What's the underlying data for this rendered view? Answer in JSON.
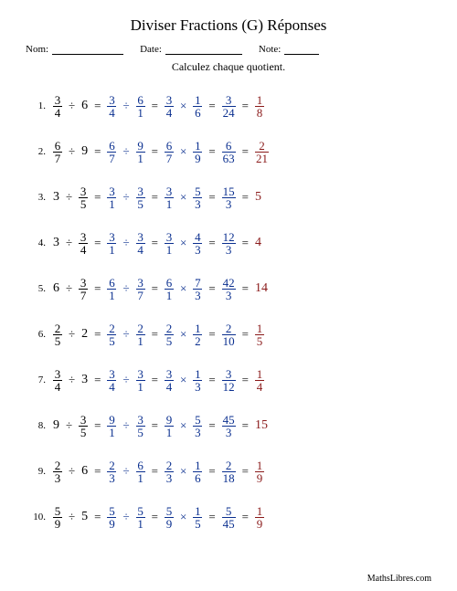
{
  "title": "Diviser Fractions (G) Réponses",
  "header": {
    "name_label": "Nom:",
    "date_label": "Date:",
    "note_label": "Note:"
  },
  "instruction": "Calculez chaque quotient.",
  "footer": "MathsLibres.com",
  "colors": {
    "problem": "#000000",
    "work": "#0a2f8f",
    "answer": "#8a1a1a"
  },
  "line_widths": {
    "name": 78,
    "date": 84,
    "note": 38
  },
  "problems": [
    {
      "n": "1.",
      "steps": [
        {
          "c": "black",
          "t": [
            {
              "f": [
                "3",
                "4"
              ]
            },
            {
              "op": "÷"
            },
            {
              "w": "6"
            }
          ]
        },
        {
          "c": "blue",
          "eq": true,
          "t": [
            {
              "f": [
                "3",
                "4"
              ]
            },
            {
              "op": "÷"
            },
            {
              "f": [
                "6",
                "1"
              ]
            }
          ]
        },
        {
          "c": "blue",
          "eq": true,
          "t": [
            {
              "f": [
                "3",
                "4"
              ]
            },
            {
              "op": "×"
            },
            {
              "f": [
                "1",
                "6"
              ]
            }
          ]
        },
        {
          "c": "blue",
          "eq": true,
          "t": [
            {
              "f": [
                "3",
                "24"
              ]
            }
          ]
        },
        {
          "c": "red",
          "eq": true,
          "t": [
            {
              "f": [
                "1",
                "8"
              ]
            }
          ]
        }
      ]
    },
    {
      "n": "2.",
      "steps": [
        {
          "c": "black",
          "t": [
            {
              "f": [
                "6",
                "7"
              ]
            },
            {
              "op": "÷"
            },
            {
              "w": "9"
            }
          ]
        },
        {
          "c": "blue",
          "eq": true,
          "t": [
            {
              "f": [
                "6",
                "7"
              ]
            },
            {
              "op": "÷"
            },
            {
              "f": [
                "9",
                "1"
              ]
            }
          ]
        },
        {
          "c": "blue",
          "eq": true,
          "t": [
            {
              "f": [
                "6",
                "7"
              ]
            },
            {
              "op": "×"
            },
            {
              "f": [
                "1",
                "9"
              ]
            }
          ]
        },
        {
          "c": "blue",
          "eq": true,
          "t": [
            {
              "f": [
                "6",
                "63"
              ]
            }
          ]
        },
        {
          "c": "red",
          "eq": true,
          "t": [
            {
              "f": [
                "2",
                "21"
              ]
            }
          ]
        }
      ]
    },
    {
      "n": "3.",
      "steps": [
        {
          "c": "black",
          "t": [
            {
              "w": "3"
            },
            {
              "op": "÷"
            },
            {
              "f": [
                "3",
                "5"
              ]
            }
          ]
        },
        {
          "c": "blue",
          "eq": true,
          "t": [
            {
              "f": [
                "3",
                "1"
              ]
            },
            {
              "op": "÷"
            },
            {
              "f": [
                "3",
                "5"
              ]
            }
          ]
        },
        {
          "c": "blue",
          "eq": true,
          "t": [
            {
              "f": [
                "3",
                "1"
              ]
            },
            {
              "op": "×"
            },
            {
              "f": [
                "5",
                "3"
              ]
            }
          ]
        },
        {
          "c": "blue",
          "eq": true,
          "t": [
            {
              "f": [
                "15",
                "3"
              ]
            }
          ]
        },
        {
          "c": "red",
          "eq": true,
          "t": [
            {
              "w": "5"
            }
          ]
        }
      ]
    },
    {
      "n": "4.",
      "steps": [
        {
          "c": "black",
          "t": [
            {
              "w": "3"
            },
            {
              "op": "÷"
            },
            {
              "f": [
                "3",
                "4"
              ]
            }
          ]
        },
        {
          "c": "blue",
          "eq": true,
          "t": [
            {
              "f": [
                "3",
                "1"
              ]
            },
            {
              "op": "÷"
            },
            {
              "f": [
                "3",
                "4"
              ]
            }
          ]
        },
        {
          "c": "blue",
          "eq": true,
          "t": [
            {
              "f": [
                "3",
                "1"
              ]
            },
            {
              "op": "×"
            },
            {
              "f": [
                "4",
                "3"
              ]
            }
          ]
        },
        {
          "c": "blue",
          "eq": true,
          "t": [
            {
              "f": [
                "12",
                "3"
              ]
            }
          ]
        },
        {
          "c": "red",
          "eq": true,
          "t": [
            {
              "w": "4"
            }
          ]
        }
      ]
    },
    {
      "n": "5.",
      "steps": [
        {
          "c": "black",
          "t": [
            {
              "w": "6"
            },
            {
              "op": "÷"
            },
            {
              "f": [
                "3",
                "7"
              ]
            }
          ]
        },
        {
          "c": "blue",
          "eq": true,
          "t": [
            {
              "f": [
                "6",
                "1"
              ]
            },
            {
              "op": "÷"
            },
            {
              "f": [
                "3",
                "7"
              ]
            }
          ]
        },
        {
          "c": "blue",
          "eq": true,
          "t": [
            {
              "f": [
                "6",
                "1"
              ]
            },
            {
              "op": "×"
            },
            {
              "f": [
                "7",
                "3"
              ]
            }
          ]
        },
        {
          "c": "blue",
          "eq": true,
          "t": [
            {
              "f": [
                "42",
                "3"
              ]
            }
          ]
        },
        {
          "c": "red",
          "eq": true,
          "t": [
            {
              "w": "14"
            }
          ]
        }
      ]
    },
    {
      "n": "6.",
      "steps": [
        {
          "c": "black",
          "t": [
            {
              "f": [
                "2",
                "5"
              ]
            },
            {
              "op": "÷"
            },
            {
              "w": "2"
            }
          ]
        },
        {
          "c": "blue",
          "eq": true,
          "t": [
            {
              "f": [
                "2",
                "5"
              ]
            },
            {
              "op": "÷"
            },
            {
              "f": [
                "2",
                "1"
              ]
            }
          ]
        },
        {
          "c": "blue",
          "eq": true,
          "t": [
            {
              "f": [
                "2",
                "5"
              ]
            },
            {
              "op": "×"
            },
            {
              "f": [
                "1",
                "2"
              ]
            }
          ]
        },
        {
          "c": "blue",
          "eq": true,
          "t": [
            {
              "f": [
                "2",
                "10"
              ]
            }
          ]
        },
        {
          "c": "red",
          "eq": true,
          "t": [
            {
              "f": [
                "1",
                "5"
              ]
            }
          ]
        }
      ]
    },
    {
      "n": "7.",
      "steps": [
        {
          "c": "black",
          "t": [
            {
              "f": [
                "3",
                "4"
              ]
            },
            {
              "op": "÷"
            },
            {
              "w": "3"
            }
          ]
        },
        {
          "c": "blue",
          "eq": true,
          "t": [
            {
              "f": [
                "3",
                "4"
              ]
            },
            {
              "op": "÷"
            },
            {
              "f": [
                "3",
                "1"
              ]
            }
          ]
        },
        {
          "c": "blue",
          "eq": true,
          "t": [
            {
              "f": [
                "3",
                "4"
              ]
            },
            {
              "op": "×"
            },
            {
              "f": [
                "1",
                "3"
              ]
            }
          ]
        },
        {
          "c": "blue",
          "eq": true,
          "t": [
            {
              "f": [
                "3",
                "12"
              ]
            }
          ]
        },
        {
          "c": "red",
          "eq": true,
          "t": [
            {
              "f": [
                "1",
                "4"
              ]
            }
          ]
        }
      ]
    },
    {
      "n": "8.",
      "steps": [
        {
          "c": "black",
          "t": [
            {
              "w": "9"
            },
            {
              "op": "÷"
            },
            {
              "f": [
                "3",
                "5"
              ]
            }
          ]
        },
        {
          "c": "blue",
          "eq": true,
          "t": [
            {
              "f": [
                "9",
                "1"
              ]
            },
            {
              "op": "÷"
            },
            {
              "f": [
                "3",
                "5"
              ]
            }
          ]
        },
        {
          "c": "blue",
          "eq": true,
          "t": [
            {
              "f": [
                "9",
                "1"
              ]
            },
            {
              "op": "×"
            },
            {
              "f": [
                "5",
                "3"
              ]
            }
          ]
        },
        {
          "c": "blue",
          "eq": true,
          "t": [
            {
              "f": [
                "45",
                "3"
              ]
            }
          ]
        },
        {
          "c": "red",
          "eq": true,
          "t": [
            {
              "w": "15"
            }
          ]
        }
      ]
    },
    {
      "n": "9.",
      "steps": [
        {
          "c": "black",
          "t": [
            {
              "f": [
                "2",
                "3"
              ]
            },
            {
              "op": "÷"
            },
            {
              "w": "6"
            }
          ]
        },
        {
          "c": "blue",
          "eq": true,
          "t": [
            {
              "f": [
                "2",
                "3"
              ]
            },
            {
              "op": "÷"
            },
            {
              "f": [
                "6",
                "1"
              ]
            }
          ]
        },
        {
          "c": "blue",
          "eq": true,
          "t": [
            {
              "f": [
                "2",
                "3"
              ]
            },
            {
              "op": "×"
            },
            {
              "f": [
                "1",
                "6"
              ]
            }
          ]
        },
        {
          "c": "blue",
          "eq": true,
          "t": [
            {
              "f": [
                "2",
                "18"
              ]
            }
          ]
        },
        {
          "c": "red",
          "eq": true,
          "t": [
            {
              "f": [
                "1",
                "9"
              ]
            }
          ]
        }
      ]
    },
    {
      "n": "10.",
      "steps": [
        {
          "c": "black",
          "t": [
            {
              "f": [
                "5",
                "9"
              ]
            },
            {
              "op": "÷"
            },
            {
              "w": "5"
            }
          ]
        },
        {
          "c": "blue",
          "eq": true,
          "t": [
            {
              "f": [
                "5",
                "9"
              ]
            },
            {
              "op": "÷"
            },
            {
              "f": [
                "5",
                "1"
              ]
            }
          ]
        },
        {
          "c": "blue",
          "eq": true,
          "t": [
            {
              "f": [
                "5",
                "9"
              ]
            },
            {
              "op": "×"
            },
            {
              "f": [
                "1",
                "5"
              ]
            }
          ]
        },
        {
          "c": "blue",
          "eq": true,
          "t": [
            {
              "f": [
                "5",
                "45"
              ]
            }
          ]
        },
        {
          "c": "red",
          "eq": true,
          "t": [
            {
              "f": [
                "1",
                "9"
              ]
            }
          ]
        }
      ]
    }
  ]
}
